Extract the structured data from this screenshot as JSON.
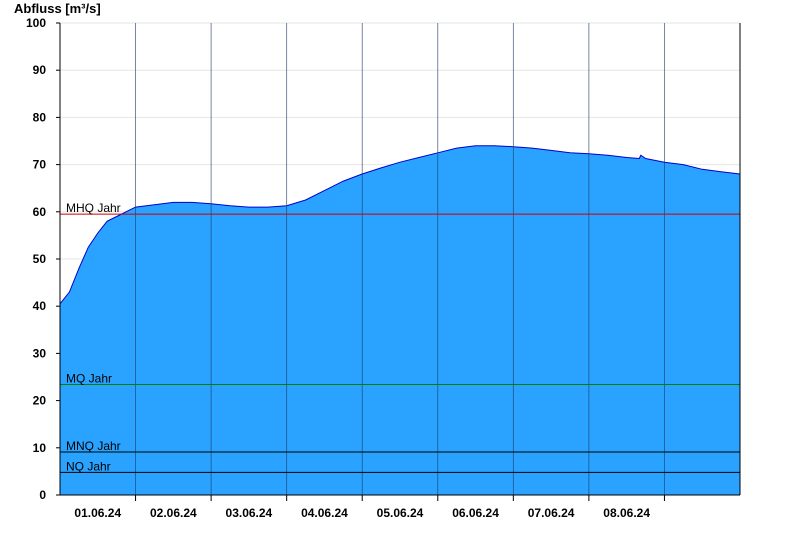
{
  "chart_data": {
    "type": "area",
    "ylabel": "Abfluss [m³/s]",
    "ylim": [
      0,
      100
    ],
    "yticks": [
      0,
      10,
      20,
      30,
      40,
      50,
      60,
      70,
      80,
      90,
      100
    ],
    "x_start": "31.05.24 00:00",
    "x_end": "09.06.24 00:00",
    "day_labels": [
      "01.06.24",
      "02.06.24",
      "03.06.24",
      "04.06.24",
      "05.06.24",
      "06.06.24",
      "07.06.24",
      "08.06.24"
    ],
    "grid": true,
    "series": [
      {
        "color": "#29a3ff",
        "line_color": "#0000cc",
        "x": [
          "31.05.24 00:00",
          "31.05.24 03:00",
          "31.05.24 06:00",
          "31.05.24 09:00",
          "31.05.24 12:00",
          "31.05.24 15:00",
          "31.05.24 18:00",
          "31.05.24 21:00",
          "01.06.24 00:00",
          "01.06.24 06:00",
          "01.06.24 12:00",
          "01.06.24 18:00",
          "02.06.24 00:00",
          "02.06.24 06:00",
          "02.06.24 12:00",
          "02.06.24 18:00",
          "03.06.24 00:00",
          "03.06.24 06:00",
          "03.06.24 12:00",
          "03.06.24 18:00",
          "04.06.24 00:00",
          "04.06.24 06:00",
          "04.06.24 12:00",
          "04.06.24 18:00",
          "05.06.24 00:00",
          "05.06.24 06:00",
          "05.06.24 12:00",
          "05.06.24 18:00",
          "06.06.24 00:00",
          "06.06.24 06:00",
          "06.06.24 12:00",
          "06.06.24 18:00",
          "07.06.24 00:00",
          "07.06.24 06:00",
          "07.06.24 12:00",
          "07.06.24 16:00",
          "07.06.24 16:30",
          "07.06.24 18:00",
          "08.06.24 00:00",
          "08.06.24 06:00",
          "08.06.24 12:00",
          "08.06.24 18:00",
          "09.06.24 00:00"
        ],
        "values": [
          40.5,
          43.0,
          48.0,
          52.5,
          55.5,
          58.0,
          59.0,
          60.0,
          61.0,
          61.5,
          62.0,
          62.0,
          61.7,
          61.3,
          61.0,
          61.0,
          61.3,
          62.5,
          64.5,
          66.5,
          68.0,
          69.3,
          70.5,
          71.5,
          72.5,
          73.5,
          74.0,
          74.0,
          73.8,
          73.5,
          73.0,
          72.5,
          72.3,
          72.0,
          71.5,
          71.3,
          72.0,
          71.3,
          70.5,
          70.0,
          69.0,
          68.5,
          68.0
        ]
      }
    ],
    "reference_lines": [
      {
        "label": "MHQ Jahr",
        "value": 59.5,
        "color": "#cc0000"
      },
      {
        "label": "MQ Jahr",
        "value": 23.4,
        "color": "#008000"
      },
      {
        "label": "MNQ Jahr",
        "value": 9.1,
        "color": "#000000"
      },
      {
        "label": "NQ Jahr",
        "value": 4.8,
        "color": "#000000"
      }
    ]
  }
}
